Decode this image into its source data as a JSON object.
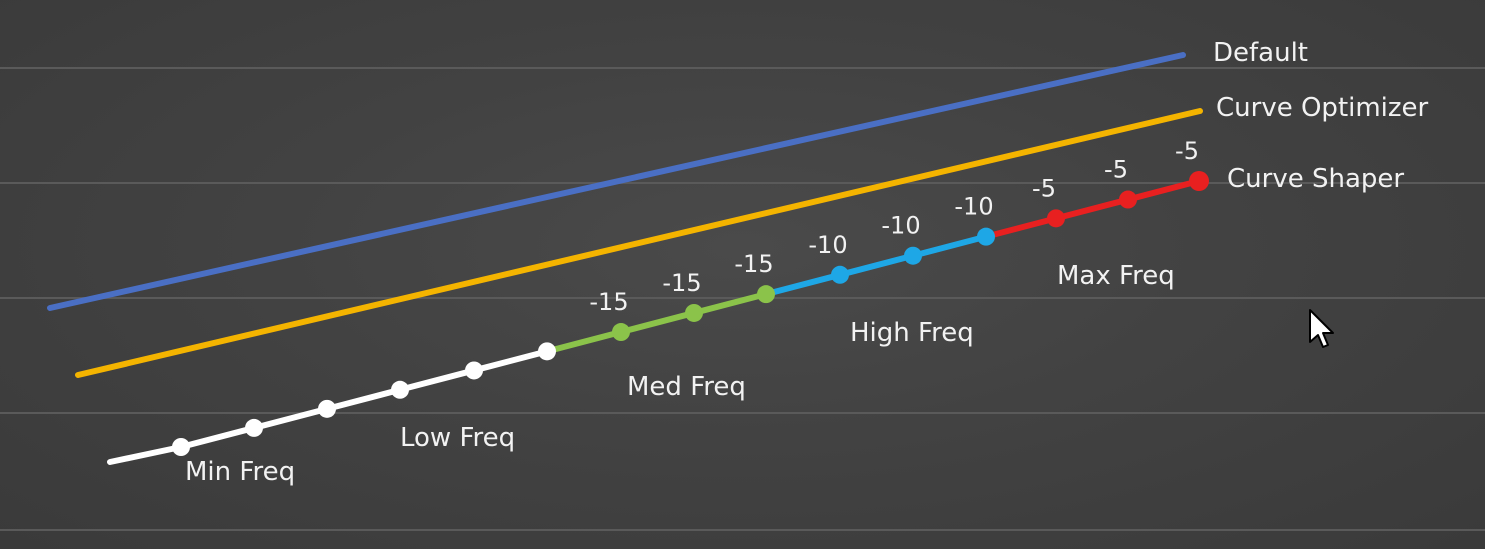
{
  "chart_data": {
    "type": "line",
    "title": "",
    "xlabel": "",
    "ylabel": "",
    "grid": true,
    "series": [
      {
        "name": "Default",
        "color": "#4a6fc4"
      },
      {
        "name": "Curve Optimizer",
        "color": "#f4b400"
      },
      {
        "name": "Curve Shaper",
        "color": "#ffffff"
      }
    ],
    "curve_shaper_points": [
      {
        "region": "min",
        "offset": null
      },
      {
        "region": "min",
        "offset": null
      },
      {
        "region": "low",
        "offset": null
      },
      {
        "region": "low",
        "offset": null
      },
      {
        "region": "low",
        "offset": null
      },
      {
        "region": "low",
        "offset": null
      },
      {
        "region": "med",
        "offset": "-15"
      },
      {
        "region": "med",
        "offset": "-15"
      },
      {
        "region": "med",
        "offset": "-15"
      },
      {
        "region": "high",
        "offset": "-10"
      },
      {
        "region": "high",
        "offset": "-10"
      },
      {
        "region": "high",
        "offset": "-10"
      },
      {
        "region": "max",
        "offset": "-5"
      },
      {
        "region": "max",
        "offset": "-5"
      },
      {
        "region": "max",
        "offset": "-5"
      }
    ],
    "regions": [
      {
        "key": "min",
        "label": "Min Freq",
        "color": "#ffffff"
      },
      {
        "key": "low",
        "label": "Low Freq",
        "color": "#ffffff"
      },
      {
        "key": "med",
        "label": "Med Freq",
        "color": "#8bc34a"
      },
      {
        "key": "high",
        "label": "High Freq",
        "color": "#1ea7e6"
      },
      {
        "key": "max",
        "label": "Max Freq",
        "color": "#e82020"
      }
    ]
  },
  "colors": {
    "background": "#3f3f3f",
    "grid": "#5a5a5a",
    "text": "#f2f2f2"
  },
  "icons": {
    "cursor": "mouse-pointer-icon"
  }
}
